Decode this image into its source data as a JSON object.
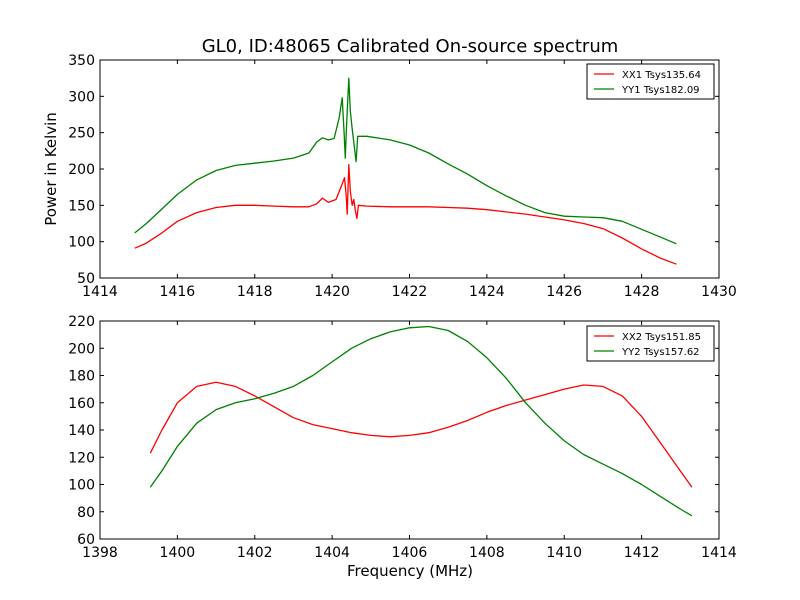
{
  "chart_data": [
    {
      "type": "line",
      "title": "GL0, ID:48065 Calibrated On-source spectrum",
      "xlabel": "",
      "ylabel": "Power in Kelvin",
      "xlim": [
        1414,
        1430
      ],
      "ylim": [
        50,
        350
      ],
      "xticks": [
        1414,
        1416,
        1418,
        1420,
        1422,
        1424,
        1426,
        1428,
        1430
      ],
      "yticks": [
        50,
        100,
        150,
        200,
        250,
        300,
        350
      ],
      "legend": "top-right",
      "grid": false,
      "series": [
        {
          "name": "XX1 Tsys135.64",
          "color": "#ff0000",
          "points": [
            [
              1414.9,
              91
            ],
            [
              1415.2,
              98
            ],
            [
              1415.6,
              112
            ],
            [
              1416.0,
              128
            ],
            [
              1416.5,
              140
            ],
            [
              1417.0,
              147
            ],
            [
              1417.5,
              150
            ],
            [
              1418.0,
              150
            ],
            [
              1418.5,
              149
            ],
            [
              1419.0,
              148
            ],
            [
              1419.4,
              148
            ],
            [
              1419.6,
              152
            ],
            [
              1419.75,
              160
            ],
            [
              1419.9,
              154
            ],
            [
              1420.1,
              158
            ],
            [
              1420.25,
              178
            ],
            [
              1420.32,
              188
            ],
            [
              1420.36,
              165
            ],
            [
              1420.39,
              138
            ],
            [
              1420.43,
              206
            ],
            [
              1420.47,
              170
            ],
            [
              1420.52,
              150
            ],
            [
              1420.56,
              158
            ],
            [
              1420.6,
              143
            ],
            [
              1420.64,
              132
            ],
            [
              1420.68,
              150
            ],
            [
              1420.9,
              149
            ],
            [
              1421.5,
              148
            ],
            [
              1422.0,
              148
            ],
            [
              1422.5,
              148
            ],
            [
              1423.0,
              147
            ],
            [
              1423.5,
              146
            ],
            [
              1424.0,
              144
            ],
            [
              1424.5,
              141
            ],
            [
              1425.0,
              138
            ],
            [
              1425.5,
              134
            ],
            [
              1426.0,
              130
            ],
            [
              1426.5,
              125
            ],
            [
              1427.0,
              118
            ],
            [
              1427.5,
              105
            ],
            [
              1428.0,
              90
            ],
            [
              1428.5,
              77
            ],
            [
              1428.9,
              69
            ]
          ]
        },
        {
          "name": "YY1 Tsys182.09",
          "color": "#008000",
          "points": [
            [
              1414.9,
              112
            ],
            [
              1415.2,
              125
            ],
            [
              1415.6,
              145
            ],
            [
              1416.0,
              165
            ],
            [
              1416.5,
              185
            ],
            [
              1417.0,
              198
            ],
            [
              1417.5,
              205
            ],
            [
              1418.0,
              208
            ],
            [
              1418.5,
              211
            ],
            [
              1419.0,
              215
            ],
            [
              1419.4,
              222
            ],
            [
              1419.6,
              237
            ],
            [
              1419.75,
              243
            ],
            [
              1419.9,
              240
            ],
            [
              1420.05,
              242
            ],
            [
              1420.18,
              270
            ],
            [
              1420.26,
              298
            ],
            [
              1420.31,
              250
            ],
            [
              1420.34,
              215
            ],
            [
              1420.37,
              255
            ],
            [
              1420.43,
              325
            ],
            [
              1420.47,
              280
            ],
            [
              1420.52,
              255
            ],
            [
              1420.57,
              232
            ],
            [
              1420.62,
              210
            ],
            [
              1420.66,
              245
            ],
            [
              1420.9,
              245
            ],
            [
              1421.5,
              240
            ],
            [
              1422.0,
              233
            ],
            [
              1422.5,
              222
            ],
            [
              1423.0,
              207
            ],
            [
              1423.5,
              193
            ],
            [
              1424.0,
              177
            ],
            [
              1424.5,
              163
            ],
            [
              1425.0,
              150
            ],
            [
              1425.5,
              140
            ],
            [
              1426.0,
              135
            ],
            [
              1426.5,
              134
            ],
            [
              1427.0,
              133
            ],
            [
              1427.5,
              128
            ],
            [
              1428.0,
              117
            ],
            [
              1428.5,
              106
            ],
            [
              1428.9,
              97
            ]
          ]
        }
      ]
    },
    {
      "type": "line",
      "title": "",
      "xlabel": "Frequency (MHz)",
      "ylabel": "",
      "xlim": [
        1398,
        1414
      ],
      "ylim": [
        60,
        220
      ],
      "xticks": [
        1398,
        1400,
        1402,
        1404,
        1406,
        1408,
        1410,
        1412,
        1414
      ],
      "yticks": [
        60,
        80,
        100,
        120,
        140,
        160,
        180,
        200,
        220
      ],
      "legend": "top-right",
      "grid": false,
      "series": [
        {
          "name": "XX2 Tsys151.85",
          "color": "#ff0000",
          "points": [
            [
              1399.3,
              123
            ],
            [
              1399.6,
              140
            ],
            [
              1400.0,
              160
            ],
            [
              1400.5,
              172
            ],
            [
              1401.0,
              175
            ],
            [
              1401.5,
              172
            ],
            [
              1402.0,
              165
            ],
            [
              1402.5,
              157
            ],
            [
              1403.0,
              149
            ],
            [
              1403.5,
              144
            ],
            [
              1404.0,
              141
            ],
            [
              1404.5,
              138
            ],
            [
              1405.0,
              136
            ],
            [
              1405.5,
              135
            ],
            [
              1406.0,
              136
            ],
            [
              1406.5,
              138
            ],
            [
              1407.0,
              142
            ],
            [
              1407.5,
              147
            ],
            [
              1408.0,
              153
            ],
            [
              1408.5,
              158
            ],
            [
              1409.0,
              162
            ],
            [
              1409.5,
              166
            ],
            [
              1410.0,
              170
            ],
            [
              1410.5,
              173
            ],
            [
              1411.0,
              172
            ],
            [
              1411.5,
              165
            ],
            [
              1412.0,
              150
            ],
            [
              1412.5,
              130
            ],
            [
              1413.0,
              110
            ],
            [
              1413.3,
              98
            ]
          ]
        },
        {
          "name": "YY2 Tsys157.62",
          "color": "#008000",
          "points": [
            [
              1399.3,
              98
            ],
            [
              1399.6,
              110
            ],
            [
              1400.0,
              128
            ],
            [
              1400.5,
              145
            ],
            [
              1401.0,
              155
            ],
            [
              1401.5,
              160
            ],
            [
              1402.0,
              163
            ],
            [
              1402.5,
              167
            ],
            [
              1403.0,
              172
            ],
            [
              1403.5,
              180
            ],
            [
              1404.0,
              190
            ],
            [
              1404.5,
              200
            ],
            [
              1405.0,
              207
            ],
            [
              1405.5,
              212
            ],
            [
              1406.0,
              215
            ],
            [
              1406.5,
              216
            ],
            [
              1407.0,
              213
            ],
            [
              1407.5,
              205
            ],
            [
              1408.0,
              193
            ],
            [
              1408.5,
              178
            ],
            [
              1409.0,
              160
            ],
            [
              1409.5,
              145
            ],
            [
              1410.0,
              132
            ],
            [
              1410.5,
              122
            ],
            [
              1411.0,
              115
            ],
            [
              1411.5,
              108
            ],
            [
              1412.0,
              100
            ],
            [
              1412.5,
              91
            ],
            [
              1413.0,
              82
            ],
            [
              1413.3,
              77
            ]
          ]
        }
      ]
    }
  ]
}
